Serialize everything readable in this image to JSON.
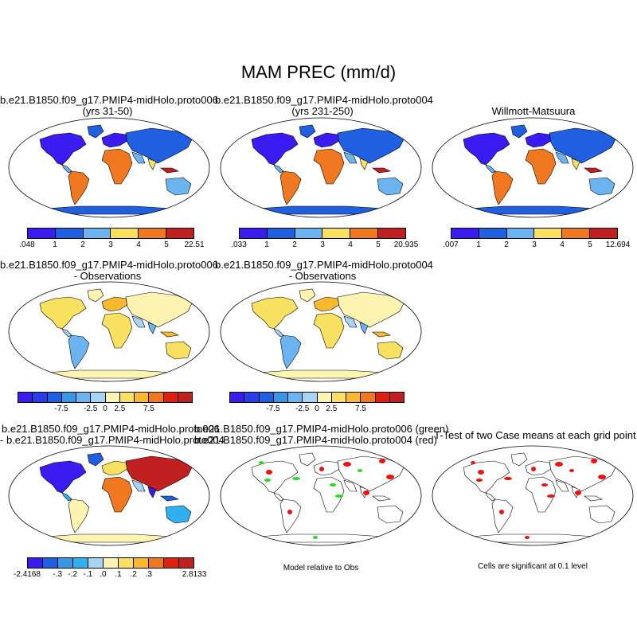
{
  "main_title": "MAM PREC (mm/d)",
  "panels": [
    {
      "id": "p1",
      "title_line1": "b.e21.B1850.f09_g17.PMIP4-midHolo.proto006",
      "title_line2": "(yrs 31-50)",
      "scheme": "precip"
    },
    {
      "id": "p2",
      "title_line1": "b.e21.B1850.f09_g17.PMIP4-midHolo.proto004",
      "title_line2": "(yrs 231-250)",
      "scheme": "precip"
    },
    {
      "id": "p3",
      "title_line1": "Willmott-Matsuura",
      "title_line2": "",
      "scheme": "precip_obs"
    },
    {
      "id": "p4",
      "title_line1": "b.e21.B1850.f09_g17.PMIP4-midHolo.proto006",
      "title_line2": "- Observations",
      "scheme": "diff"
    },
    {
      "id": "p5",
      "title_line1": "b.e21.B1850.f09_g17.PMIP4-midHolo.proto004",
      "title_line2": "- Observations",
      "scheme": "diff"
    },
    {
      "id": "p6",
      "title_line1": "b.e21.B1850.f09_g17.PMIP4-midHolo.proto006",
      "title_line2": "- b.e21.B1850.f09_g17.PMIP4-midHolo.proto004",
      "scheme": "casediff"
    },
    {
      "id": "p7",
      "title_line1": "b.e21.B1850.f09_g17.PMIP4-midHolo.proto006 (green)",
      "title_line2": "b.e21.B1850.f09_g17.PMIP4-midHolo.proto004 (red)",
      "scheme": "mask_green_red"
    },
    {
      "id": "p8",
      "title_line1": "T-Test of two Case means at each grid point",
      "title_line2": "",
      "scheme": "mask_red"
    }
  ],
  "colorbars": {
    "cb1": {
      "colors": [
        "#3a1cf0",
        "#2060e0",
        "#6cb4f0",
        "#f8e060",
        "#f07820",
        "#c02020"
      ],
      "labels": [
        ".048",
        "1",
        "2",
        "3",
        "4",
        "5",
        "22.51"
      ]
    },
    "cb2": {
      "colors": [
        "#3a1cf0",
        "#2060e0",
        "#6cb4f0",
        "#f8e060",
        "#f07820",
        "#c02020"
      ],
      "labels": [
        ".033",
        "1",
        "2",
        "3",
        "4",
        "5",
        "20.935"
      ]
    },
    "cb3": {
      "colors": [
        "#3a1cf0",
        "#2060e0",
        "#6cb4f0",
        "#f8e060",
        "#f07820",
        "#c02020"
      ],
      "labels": [
        ".007",
        "1",
        "2",
        "3",
        "4",
        "5",
        "12.694"
      ]
    },
    "cb4": {
      "colors": [
        "#3a1cf0",
        "#2a3ce8",
        "#2060e0",
        "#3898e8",
        "#6cb4f0",
        "#a8d4f4",
        "#fcf4b0",
        "#f8e060",
        "#f8b830",
        "#f07820",
        "#e02010",
        "#c02020"
      ],
      "labels": [
        "-7.5",
        "-2.5",
        "0",
        "2.5",
        "7.5"
      ]
    },
    "cb5": {
      "colors": [
        "#3a1cf0",
        "#2a3ce8",
        "#2060e0",
        "#3898e8",
        "#6cb4f0",
        "#a8d4f4",
        "#fcf4b0",
        "#f8e060",
        "#f8b830",
        "#f07820",
        "#e02010",
        "#c02020"
      ],
      "labels": [
        "-7.5",
        "-2.5",
        "0",
        "2.5",
        "7.5"
      ]
    },
    "cb6": {
      "colors": [
        "#3a1cf0",
        "#2060e0",
        "#3898e8",
        "#30b0f0",
        "#a8d4f4",
        "#fcf4b0",
        "#f8e060",
        "#f8b830",
        "#f07820",
        "#e02010",
        "#c02020"
      ],
      "labels": [
        "-2.4168",
        "-.3",
        "-.2",
        "-.1",
        ".0",
        ".1",
        ".2",
        ".3",
        "2.8133"
      ]
    }
  },
  "captions": {
    "c7": "Model relative to Obs",
    "c8": "Cells are significant at 0.1 level"
  },
  "colors": {
    "ocean": "#ffffff",
    "mask_green": "#22dd22",
    "mask_red": "#ee1111"
  }
}
